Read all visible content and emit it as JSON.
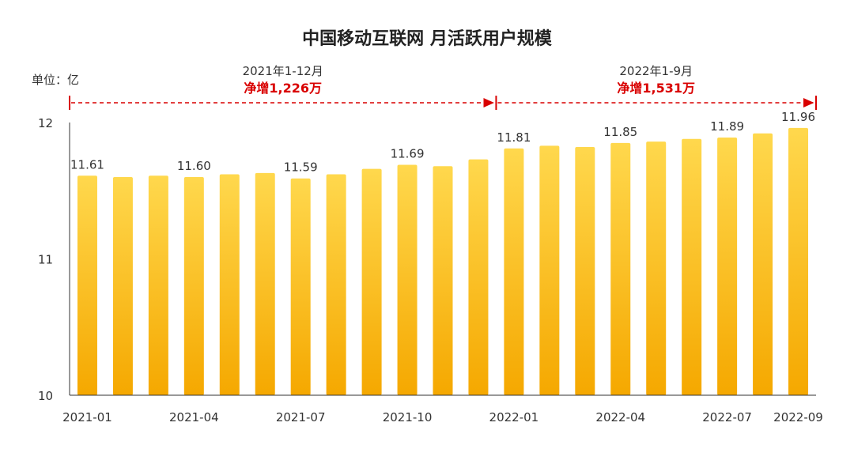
{
  "chart_data": {
    "type": "bar",
    "title": "中国移动互联网 月活跃用户规模",
    "unit_label": "单位：亿",
    "xlabel": "",
    "ylabel": "",
    "ylim": [
      10,
      12
    ],
    "yticks": [
      "10",
      "11",
      "12"
    ],
    "categories": [
      "2021-01",
      "2021-02",
      "2021-03",
      "2021-04",
      "2021-05",
      "2021-06",
      "2021-07",
      "2021-08",
      "2021-09",
      "2021-10",
      "2021-11",
      "2021-12",
      "2022-01",
      "2022-02",
      "2022-03",
      "2022-04",
      "2022-05",
      "2022-06",
      "2022-07",
      "2022-08",
      "2022-09"
    ],
    "xtick_labels": [
      "2021-01",
      "2021-04",
      "2021-07",
      "2021-10",
      "2022-01",
      "2022-04",
      "2022-07",
      "2022-09"
    ],
    "values": [
      11.61,
      11.6,
      11.61,
      11.6,
      11.62,
      11.63,
      11.59,
      11.62,
      11.66,
      11.69,
      11.68,
      11.73,
      11.81,
      11.83,
      11.82,
      11.85,
      11.86,
      11.88,
      11.89,
      11.92,
      11.96
    ],
    "data_labels": [
      {
        "index": 0,
        "text": "11.61"
      },
      {
        "index": 3,
        "text": "11.60"
      },
      {
        "index": 6,
        "text": "11.59"
      },
      {
        "index": 9,
        "text": "11.69"
      },
      {
        "index": 12,
        "text": "11.81"
      },
      {
        "index": 15,
        "text": "11.85"
      },
      {
        "index": 18,
        "text": "11.89"
      },
      {
        "index": 20,
        "text": "11.96"
      }
    ],
    "annotations": [
      {
        "period": "2021年1-12月",
        "net": "净增1,226万",
        "from_index": 0,
        "to_index": 11
      },
      {
        "period": "2022年1-9月",
        "net": "净增1,531万",
        "from_index": 12,
        "to_index": 20
      }
    ],
    "colors": {
      "bar_top": "#ffd84d",
      "bar_bottom": "#f5a800",
      "annotation": "#d90000",
      "axis": "#333333"
    },
    "grid": false,
    "legend": "none"
  }
}
